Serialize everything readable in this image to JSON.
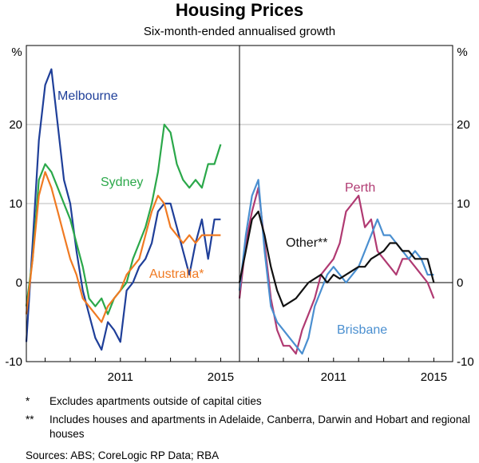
{
  "title": "Housing Prices",
  "subtitle": "Six-month-ended annualised growth",
  "notes": [
    {
      "mark": "*",
      "text": "Excludes apartments outside of capital cities"
    },
    {
      "mark": "**",
      "text": "Includes houses and apartments in Adelaide, Canberra, Darwin and Hobart and regional houses"
    }
  ],
  "sources": "Sources:   ABS; CoreLogic RP Data; RBA",
  "chart_data": [
    {
      "type": "line",
      "panel": "left",
      "yunit": "%",
      "ylim": [
        -10,
        30
      ],
      "yticks": [
        -10,
        0,
        10,
        20
      ],
      "xlim": [
        2007.25,
        2015.75
      ],
      "xticks": [
        2011,
        2015
      ],
      "series": [
        {
          "name": "Melbourne",
          "label": "Melbourne",
          "color": "#1f3f99",
          "x": [
            2007.25,
            2007.5,
            2007.75,
            2008.0,
            2008.25,
            2008.5,
            2008.75,
            2009.0,
            2009.25,
            2009.5,
            2009.75,
            2010.0,
            2010.25,
            2010.5,
            2010.75,
            2011.0,
            2011.25,
            2011.5,
            2011.75,
            2012.0,
            2012.25,
            2012.5,
            2012.75,
            2013.0,
            2013.25,
            2013.5,
            2013.75,
            2014.0,
            2014.25,
            2014.5,
            2014.75,
            2015.0
          ],
          "y": [
            -7.5,
            5,
            18,
            25,
            27,
            20,
            13,
            10,
            4,
            -1,
            -4,
            -7,
            -8.5,
            -5,
            -6,
            -7.5,
            -1,
            0,
            2,
            3,
            5,
            9,
            10,
            10,
            7,
            4,
            1,
            5,
            8,
            3,
            8,
            8
          ]
        },
        {
          "name": "Sydney",
          "label": "Sydney",
          "color": "#2ba84a",
          "x": [
            2007.25,
            2007.5,
            2007.75,
            2008.0,
            2008.25,
            2008.5,
            2008.75,
            2009.0,
            2009.25,
            2009.5,
            2009.75,
            2010.0,
            2010.25,
            2010.5,
            2010.75,
            2011.0,
            2011.25,
            2011.5,
            2011.75,
            2012.0,
            2012.25,
            2012.5,
            2012.75,
            2013.0,
            2013.25,
            2013.5,
            2013.75,
            2014.0,
            2014.25,
            2014.5,
            2014.75,
            2015.0
          ],
          "y": [
            -3,
            3,
            13,
            15,
            14,
            12,
            10,
            8,
            5,
            2,
            -2,
            -3,
            -2,
            -4,
            -2,
            -1,
            0,
            3,
            5,
            7,
            10,
            14,
            20,
            19,
            15,
            13,
            12,
            13,
            12,
            15,
            15,
            17.5
          ]
        },
        {
          "name": "Australia*",
          "label": "Australia*",
          "color": "#f07a22",
          "x": [
            2007.25,
            2007.5,
            2007.75,
            2008.0,
            2008.25,
            2008.5,
            2008.75,
            2009.0,
            2009.25,
            2009.5,
            2009.75,
            2010.0,
            2010.25,
            2010.5,
            2010.75,
            2011.0,
            2011.25,
            2011.5,
            2011.75,
            2012.0,
            2012.25,
            2012.5,
            2012.75,
            2013.0,
            2013.25,
            2013.5,
            2013.75,
            2014.0,
            2014.25,
            2014.5,
            2014.75,
            2015.0
          ],
          "y": [
            -4,
            3,
            11,
            14,
            12,
            9,
            6,
            3,
            1,
            -2,
            -3,
            -4,
            -5,
            -3,
            -2,
            -1,
            1,
            2,
            3,
            6,
            9,
            11,
            10,
            7,
            6,
            5,
            6,
            5,
            6,
            6,
            6,
            6
          ]
        }
      ]
    },
    {
      "type": "line",
      "panel": "right",
      "yunit": "%",
      "ylim": [
        -10,
        30
      ],
      "yticks": [
        -10,
        0,
        10,
        20
      ],
      "xlim": [
        2007.25,
        2015.75
      ],
      "xticks": [
        2011,
        2015
      ],
      "series": [
        {
          "name": "Perth",
          "label": "Perth",
          "color": "#b03a72",
          "x": [
            2007.25,
            2007.5,
            2007.75,
            2008.0,
            2008.25,
            2008.5,
            2008.75,
            2009.0,
            2009.25,
            2009.5,
            2009.75,
            2010.0,
            2010.25,
            2010.5,
            2010.75,
            2011.0,
            2011.25,
            2011.5,
            2011.75,
            2012.0,
            2012.25,
            2012.5,
            2012.75,
            2013.0,
            2013.25,
            2013.5,
            2013.75,
            2014.0,
            2014.25,
            2014.5,
            2014.75,
            2015.0
          ],
          "y": [
            -2,
            5,
            9,
            12,
            5,
            -2,
            -6,
            -8,
            -8,
            -9,
            -6,
            -4,
            -2,
            1,
            2,
            3,
            5,
            9,
            10,
            11,
            7,
            8,
            4,
            3,
            2,
            1,
            3,
            3,
            2,
            1,
            0,
            -2
          ]
        },
        {
          "name": "Brisbane",
          "label": "Brisbane",
          "color": "#4a8fd0",
          "x": [
            2007.25,
            2007.5,
            2007.75,
            2008.0,
            2008.25,
            2008.5,
            2008.75,
            2009.0,
            2009.25,
            2009.5,
            2009.75,
            2010.0,
            2010.25,
            2010.5,
            2010.75,
            2011.0,
            2011.25,
            2011.5,
            2011.75,
            2012.0,
            2012.25,
            2012.5,
            2012.75,
            2013.0,
            2013.25,
            2013.5,
            2013.75,
            2014.0,
            2014.25,
            2014.5,
            2014.75,
            2015.0
          ],
          "y": [
            -1,
            6,
            11,
            13,
            4,
            -3,
            -5,
            -6,
            -7,
            -8,
            -9,
            -7,
            -3,
            -1,
            1,
            2,
            1,
            0,
            1,
            2,
            4,
            6,
            8,
            6,
            6,
            5,
            4,
            3,
            4,
            3,
            1,
            1
          ]
        },
        {
          "name": "Other**",
          "label": "Other**",
          "color": "#111111",
          "x": [
            2007.25,
            2007.5,
            2007.75,
            2008.0,
            2008.25,
            2008.5,
            2008.75,
            2009.0,
            2009.25,
            2009.5,
            2009.75,
            2010.0,
            2010.25,
            2010.5,
            2010.75,
            2011.0,
            2011.25,
            2011.5,
            2011.75,
            2012.0,
            2012.25,
            2012.5,
            2012.75,
            2013.0,
            2013.25,
            2013.5,
            2013.75,
            2014.0,
            2014.25,
            2014.5,
            2014.75,
            2015.0
          ],
          "y": [
            0,
            4,
            8,
            9,
            6,
            2,
            -1,
            -3,
            -2.5,
            -2,
            -1,
            0,
            0.5,
            1,
            0,
            1,
            0.5,
            1,
            1.5,
            2,
            2,
            3,
            3.5,
            4,
            5,
            5,
            4,
            4,
            3,
            3,
            3,
            0
          ]
        }
      ]
    }
  ]
}
